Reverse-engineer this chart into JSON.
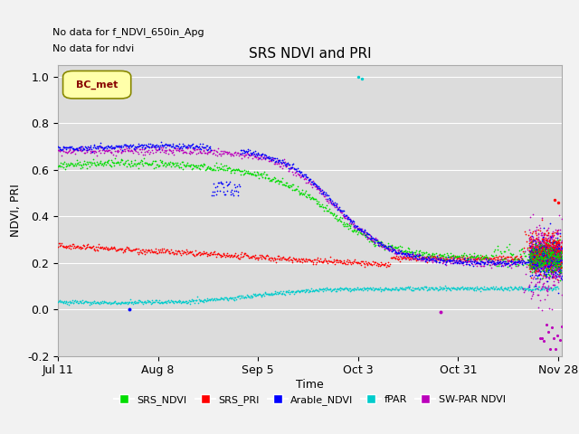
{
  "title": "SRS NDVI and PRI",
  "ylabel": "NDVI, PRI",
  "xlabel": "Time",
  "ylim": [
    -0.2,
    1.05
  ],
  "xlim_days": [
    0,
    141
  ],
  "xtick_days": [
    0,
    28,
    56,
    84,
    112,
    140
  ],
  "xtick_labels": [
    "Jul 11",
    "Aug 8",
    "Sep 5",
    "Oct 3",
    "Oct 31",
    "Nov 28"
  ],
  "ytick_positions": [
    -0.2,
    0.0,
    0.2,
    0.4,
    0.6,
    0.8,
    1.0
  ],
  "no_data_text": [
    "No data for f_NDVI_650in_Apg",
    "No data for ndvi"
  ],
  "bc_met_label": "BC_met",
  "legend_items": [
    "SRS_NDVI",
    "SRS_PRI",
    "Arable_NDVI",
    "fPAR",
    "SW-PAR NDVI"
  ],
  "colors": {
    "SRS_NDVI": "#00DD00",
    "SRS_PRI": "#FF0000",
    "Arable_NDVI": "#0000FF",
    "fPAR": "#00CCCC",
    "SW-PAR NDVI": "#BB00BB"
  },
  "plot_bg": "#DCDCDC",
  "fig_bg": "#F2F2F2",
  "grid_color": "#FFFFFF"
}
